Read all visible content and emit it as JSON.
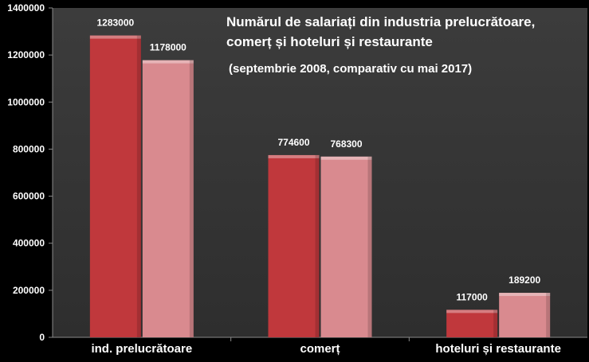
{
  "chart_data": {
    "type": "bar",
    "title_line1": "Numărul de salariați din industria prelucrătoare,",
    "title_line2": "comerț și hoteluri și restaurante",
    "subtitle": "(septembrie 2008, comparativ cu mai 2017)",
    "categories": [
      "ind. prelucrătoare",
      "comerț",
      "hoteluri și restaurante"
    ],
    "series": [
      {
        "values": [
          1283000,
          774600,
          117000
        ],
        "color": "#c0383c"
      },
      {
        "values": [
          1178000,
          768300,
          189200
        ],
        "color": "#d98a8f"
      }
    ],
    "ylim": [
      0,
      1400000
    ],
    "yticks": [
      0,
      200000,
      400000,
      600000,
      800000,
      1000000,
      1200000,
      1400000
    ],
    "grid": false,
    "legend": "none",
    "colors": {
      "background": "#000000",
      "plot_area": "#3a3a3a",
      "text": "#ffffff"
    }
  }
}
